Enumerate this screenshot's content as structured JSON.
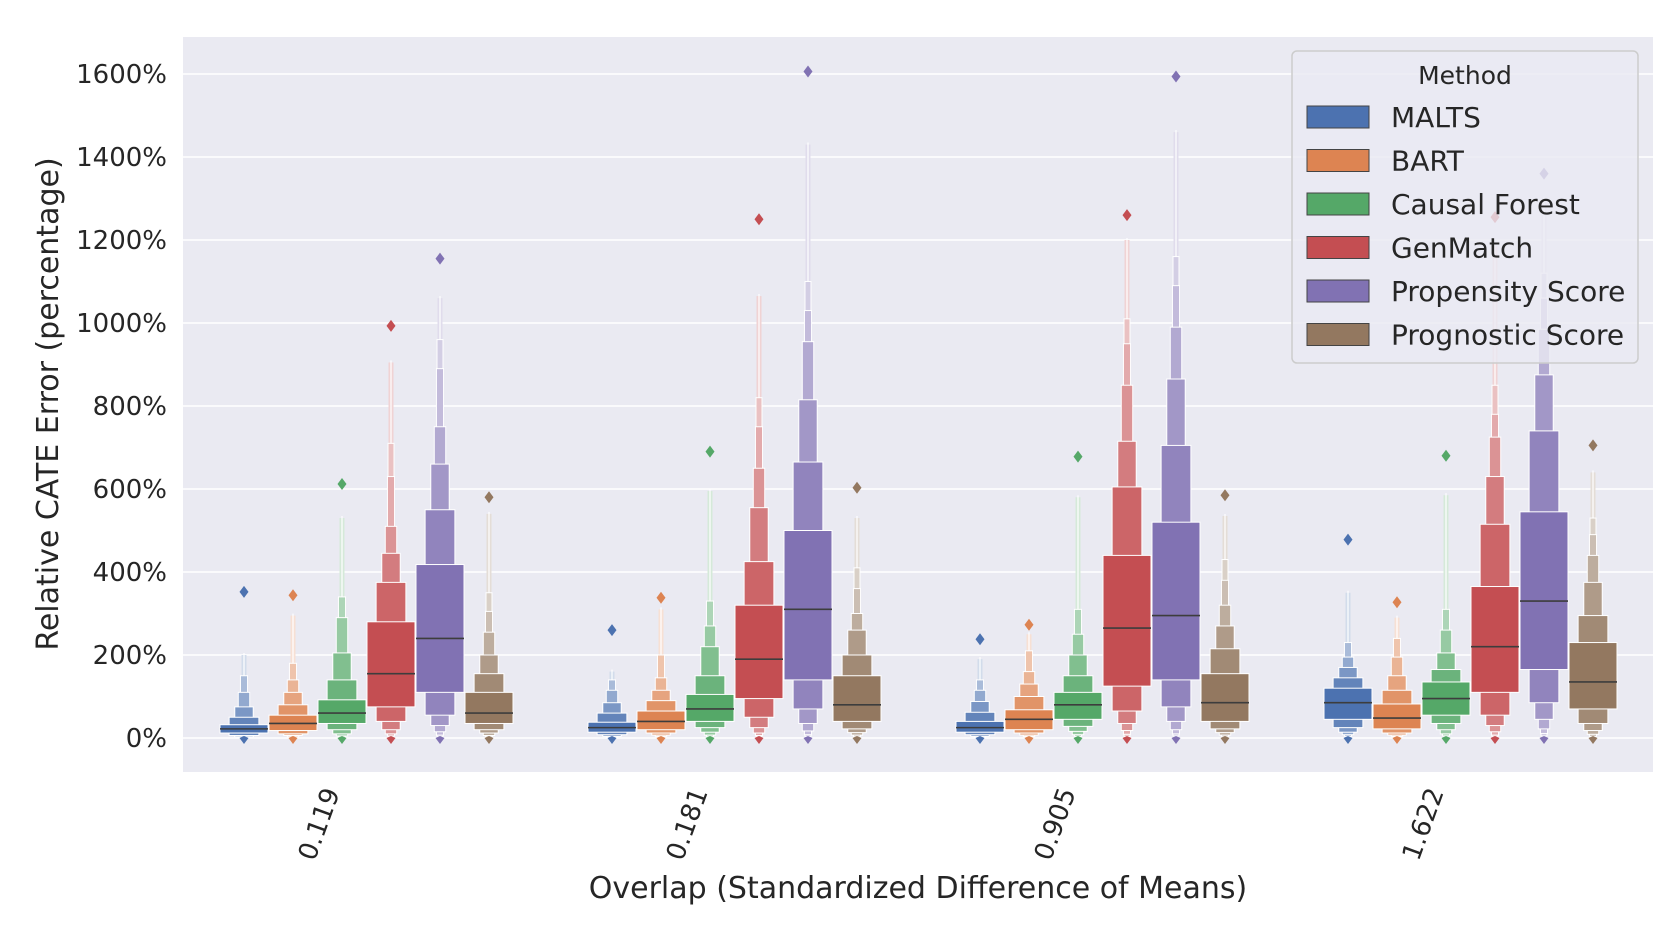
{
  "chart_data": {
    "type": "boxen",
    "title": "",
    "xlabel": "Overlap (Standardized Difference of Means)",
    "ylabel": "Relative CATE Error (percentage)",
    "categories": [
      "0.119",
      "0.181",
      "0.905",
      "1.622"
    ],
    "ylim": [
      -80,
      1700
    ],
    "yticks": [
      0,
      200,
      400,
      600,
      800,
      1000,
      1200,
      1400,
      1600
    ],
    "ytick_labels": [
      "0%",
      "200%",
      "400%",
      "600%",
      "800%",
      "1000%",
      "1200%",
      "1400%",
      "1600%"
    ],
    "grid": true,
    "legend": {
      "title": "Method",
      "position": "top-right"
    },
    "series": [
      {
        "name": "MALTS",
        "color": "#4c72b0",
        "boxes": [
          {
            "median": 22,
            "levels": [
              [
                12,
                32
              ],
              [
                6,
                50
              ],
              [
                3,
                75
              ],
              [
                1,
                110
              ],
              [
                0.5,
                150
              ]
            ],
            "whisker_max": 200,
            "outlier_max": 352
          },
          {
            "median": 25,
            "levels": [
              [
                14,
                38
              ],
              [
                8,
                60
              ],
              [
                4,
                85
              ],
              [
                2,
                115
              ],
              [
                1,
                140
              ]
            ],
            "whisker_max": 160,
            "outlier_max": 260
          },
          {
            "median": 25,
            "levels": [
              [
                14,
                40
              ],
              [
                8,
                62
              ],
              [
                4,
                88
              ],
              [
                2,
                115
              ],
              [
                1,
                140
              ]
            ],
            "whisker_max": 190,
            "outlier_max": 238
          },
          {
            "median": 85,
            "levels": [
              [
                45,
                120
              ],
              [
                25,
                145
              ],
              [
                14,
                170
              ],
              [
                8,
                195
              ],
              [
                4,
                230
              ]
            ],
            "whisker_max": 350,
            "outlier_max": 478
          }
        ]
      },
      {
        "name": "BART",
        "color": "#dd8452",
        "boxes": [
          {
            "median": 35,
            "levels": [
              [
                18,
                55
              ],
              [
                10,
                80
              ],
              [
                6,
                110
              ],
              [
                3,
                140
              ],
              [
                1,
                180
              ]
            ],
            "whisker_max": 295,
            "outlier_max": 344
          },
          {
            "median": 40,
            "levels": [
              [
                20,
                65
              ],
              [
                12,
                90
              ],
              [
                7,
                115
              ],
              [
                4,
                145
              ],
              [
                2,
                200
              ]
            ],
            "whisker_max": 310,
            "outlier_max": 338
          },
          {
            "median": 45,
            "levels": [
              [
                20,
                68
              ],
              [
                12,
                100
              ],
              [
                7,
                130
              ],
              [
                4,
                160
              ],
              [
                2,
                210
              ]
            ],
            "whisker_max": 250,
            "outlier_max": 273
          },
          {
            "median": 48,
            "levels": [
              [
                22,
                82
              ],
              [
                12,
                115
              ],
              [
                7,
                150
              ],
              [
                4,
                195
              ],
              [
                2,
                240
              ]
            ],
            "whisker_max": 290,
            "outlier_max": 327
          }
        ]
      },
      {
        "name": "Causal Forest",
        "color": "#55a868",
        "boxes": [
          {
            "median": 60,
            "levels": [
              [
                35,
                92
              ],
              [
                20,
                140
              ],
              [
                10,
                205
              ],
              [
                5,
                290
              ],
              [
                2,
                340
              ]
            ],
            "whisker_max": 530,
            "outlier_max": 612
          },
          {
            "median": 70,
            "levels": [
              [
                40,
                105
              ],
              [
                25,
                150
              ],
              [
                14,
                220
              ],
              [
                7,
                270
              ],
              [
                3,
                330
              ]
            ],
            "whisker_max": 595,
            "outlier_max": 690
          },
          {
            "median": 80,
            "levels": [
              [
                45,
                110
              ],
              [
                28,
                150
              ],
              [
                16,
                200
              ],
              [
                8,
                250
              ],
              [
                4,
                310
              ]
            ],
            "whisker_max": 580,
            "outlier_max": 678
          },
          {
            "median": 95,
            "levels": [
              [
                55,
                135
              ],
              [
                35,
                165
              ],
              [
                20,
                205
              ],
              [
                10,
                260
              ],
              [
                5,
                310
              ]
            ],
            "whisker_max": 585,
            "outlier_max": 680
          }
        ]
      },
      {
        "name": "GenMatch",
        "color": "#c44e52",
        "boxes": [
          {
            "median": 155,
            "levels": [
              [
                75,
                280
              ],
              [
                40,
                375
              ],
              [
                20,
                445
              ],
              [
                10,
                510
              ],
              [
                5,
                630
              ],
              [
                2,
                710
              ]
            ],
            "whisker_max": 905,
            "outlier_max": 993
          },
          {
            "median": 190,
            "levels": [
              [
                95,
                320
              ],
              [
                50,
                425
              ],
              [
                25,
                555
              ],
              [
                12,
                650
              ],
              [
                6,
                750
              ],
              [
                3,
                820
              ]
            ],
            "whisker_max": 1065,
            "outlier_max": 1250
          },
          {
            "median": 265,
            "levels": [
              [
                125,
                440
              ],
              [
                65,
                605
              ],
              [
                35,
                715
              ],
              [
                18,
                850
              ],
              [
                9,
                950
              ],
              [
                4,
                1010
              ]
            ],
            "whisker_max": 1200,
            "outlier_max": 1260
          },
          {
            "median": 220,
            "levels": [
              [
                110,
                365
              ],
              [
                55,
                515
              ],
              [
                30,
                630
              ],
              [
                15,
                725
              ],
              [
                7,
                780
              ],
              [
                3,
                850
              ]
            ],
            "whisker_max": 1185,
            "outlier_max": 1255
          }
        ]
      },
      {
        "name": "Propensity Score",
        "color": "#8172b3",
        "boxes": [
          {
            "median": 240,
            "levels": [
              [
                110,
                418
              ],
              [
                55,
                550
              ],
              [
                30,
                660
              ],
              [
                15,
                750
              ],
              [
                7,
                890
              ],
              [
                3,
                960
              ]
            ],
            "whisker_max": 1060,
            "outlier_max": 1155
          },
          {
            "median": 310,
            "levels": [
              [
                140,
                500
              ],
              [
                70,
                665
              ],
              [
                35,
                815
              ],
              [
                17,
                955
              ],
              [
                8,
                1030
              ],
              [
                4,
                1100
              ]
            ],
            "whisker_max": 1430,
            "outlier_max": 1606
          },
          {
            "median": 295,
            "levels": [
              [
                140,
                520
              ],
              [
                75,
                705
              ],
              [
                40,
                865
              ],
              [
                20,
                990
              ],
              [
                10,
                1090
              ],
              [
                5,
                1160
              ]
            ],
            "whisker_max": 1460,
            "outlier_max": 1594
          },
          {
            "median": 330,
            "levels": [
              [
                165,
                545
              ],
              [
                85,
                740
              ],
              [
                45,
                875
              ],
              [
                22,
                985
              ],
              [
                11,
                1060
              ],
              [
                5,
                1120
              ]
            ],
            "whisker_max": 1300,
            "outlier_max": 1360
          }
        ]
      },
      {
        "name": "Prognostic Score",
        "color": "#937860",
        "boxes": [
          {
            "median": 60,
            "levels": [
              [
                35,
                110
              ],
              [
                20,
                155
              ],
              [
                12,
                200
              ],
              [
                6,
                255
              ],
              [
                3,
                305
              ],
              [
                1,
                350
              ]
            ],
            "whisker_max": 540,
            "outlier_max": 580
          },
          {
            "median": 80,
            "levels": [
              [
                40,
                150
              ],
              [
                22,
                200
              ],
              [
                13,
                260
              ],
              [
                7,
                300
              ],
              [
                3,
                360
              ],
              [
                1,
                410
              ]
            ],
            "whisker_max": 530,
            "outlier_max": 603
          },
          {
            "median": 85,
            "levels": [
              [
                40,
                155
              ],
              [
                22,
                215
              ],
              [
                13,
                270
              ],
              [
                7,
                320
              ],
              [
                3,
                380
              ],
              [
                1,
                430
              ]
            ],
            "whisker_max": 535,
            "outlier_max": 585
          },
          {
            "median": 135,
            "levels": [
              [
                70,
                230
              ],
              [
                35,
                295
              ],
              [
                18,
                375
              ],
              [
                9,
                440
              ],
              [
                4,
                490
              ],
              [
                2,
                530
              ]
            ],
            "whisker_max": 640,
            "outlier_max": 705
          }
        ]
      }
    ]
  }
}
